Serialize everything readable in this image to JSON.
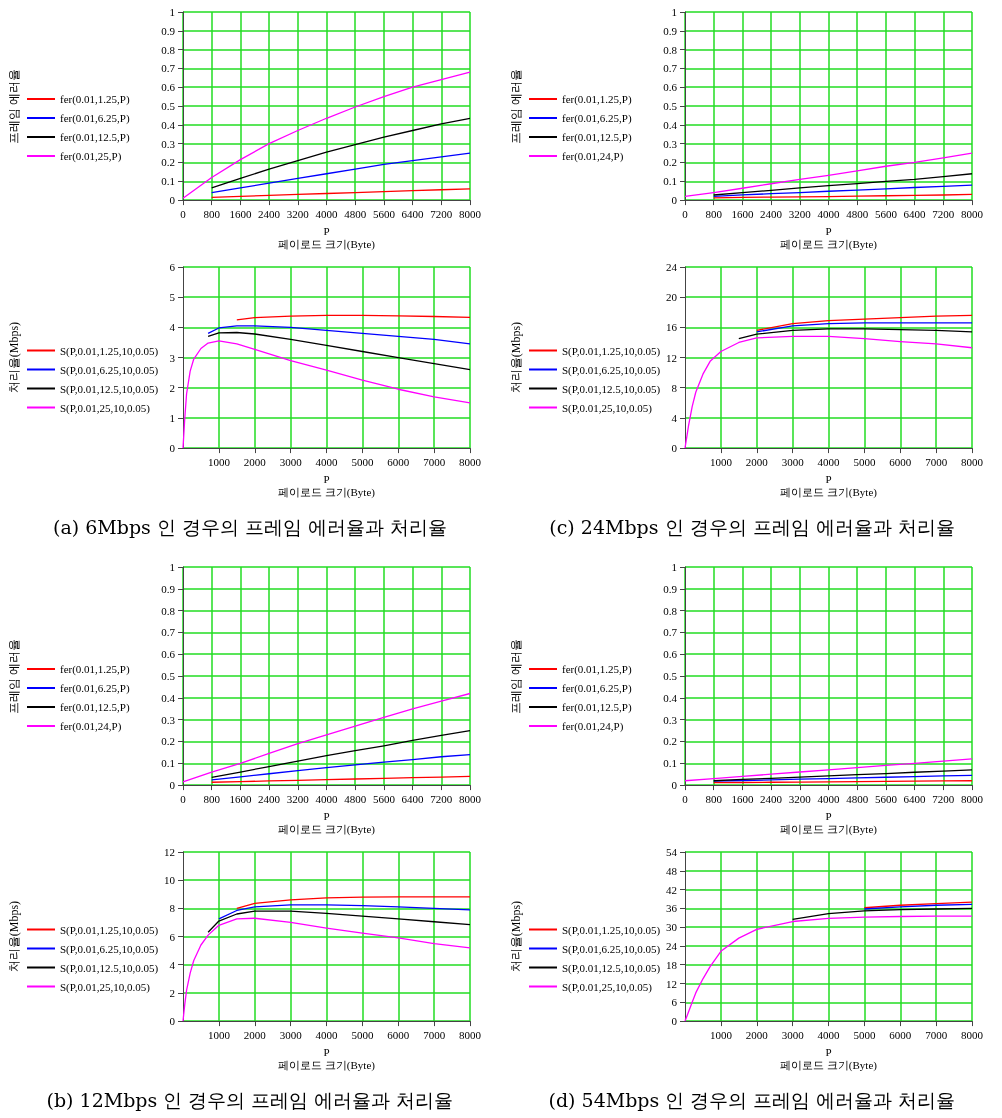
{
  "chart_data": [
    {
      "type": "line",
      "xlabel": "P\n페이로드 크기(Byte)",
      "ylabel": "프레임 에러율",
      "x": [
        0,
        800,
        1600,
        2400,
        3200,
        4000,
        4800,
        5600,
        6400,
        7200,
        8000
      ],
      "xlim": [
        0,
        8000
      ],
      "xticks": [
        0,
        800,
        1600,
        2400,
        3200,
        4000,
        4800,
        5600,
        6400,
        7200,
        8000
      ],
      "ylim": [
        0,
        1
      ],
      "yticks": [
        0,
        0.1,
        0.2,
        0.3,
        0.4,
        0.5,
        0.6,
        0.7,
        0.8,
        0.9,
        1
      ],
      "grid": true,
      "legend": "left",
      "marker": "none",
      "series": [
        {
          "name": "fer(0.01,1.25,P)",
          "color": "#ff0000",
          "values": [
            null,
            0.015,
            0.02,
            0.025,
            0.03,
            0.035,
            0.04,
            0.045,
            0.05,
            0.055,
            0.06
          ]
        },
        {
          "name": "fer(0.01,6.25,P)",
          "color": "#0000ff",
          "values": [
            null,
            0.04,
            0.065,
            0.09,
            0.115,
            0.14,
            0.165,
            0.19,
            0.21,
            0.23,
            0.25
          ]
        },
        {
          "name": "fer(0.01,12.5,P)",
          "color": "#000000",
          "values": [
            null,
            0.065,
            0.115,
            0.165,
            0.21,
            0.255,
            0.295,
            0.335,
            0.37,
            0.405,
            0.435
          ]
        },
        {
          "name": "fer(0.01,25,P)",
          "color": "#ff00ff",
          "values": [
            0.01,
            0.12,
            0.215,
            0.3,
            0.37,
            0.435,
            0.495,
            0.55,
            0.6,
            0.64,
            0.68
          ]
        }
      ]
    },
    {
      "type": "line",
      "xlabel": "P\n페이로드 크기(Byte)",
      "ylabel": "프레임 에러율",
      "x": [
        0,
        800,
        1600,
        2400,
        3200,
        4000,
        4800,
        5600,
        6400,
        7200,
        8000
      ],
      "xlim": [
        0,
        8000
      ],
      "xticks": [
        0,
        800,
        1600,
        2400,
        3200,
        4000,
        4800,
        5600,
        6400,
        7200,
        8000
      ],
      "ylim": [
        0,
        1
      ],
      "yticks": [
        0,
        0.1,
        0.2,
        0.3,
        0.4,
        0.5,
        0.6,
        0.7,
        0.8,
        0.9,
        1
      ],
      "grid": true,
      "legend": "left",
      "marker": "none",
      "series": [
        {
          "name": "fer(0.01,1.25,P)",
          "color": "#ff0000",
          "values": [
            null,
            0.012,
            0.014,
            0.016,
            0.017,
            0.019,
            0.021,
            0.023,
            0.025,
            0.027,
            0.03
          ]
        },
        {
          "name": "fer(0.01,6.25,P)",
          "color": "#0000ff",
          "values": [
            null,
            0.02,
            0.028,
            0.034,
            0.04,
            0.047,
            0.053,
            0.06,
            0.067,
            0.073,
            0.08
          ]
        },
        {
          "name": "fer(0.01,12.5,P)",
          "color": "#000000",
          "values": [
            null,
            0.027,
            0.04,
            0.052,
            0.065,
            0.077,
            0.088,
            0.1,
            0.11,
            0.125,
            0.14
          ]
        },
        {
          "name": "fer(0.01,24,P)",
          "color": "#ff00ff",
          "values": [
            0.02,
            0.04,
            0.063,
            0.087,
            0.11,
            0.132,
            0.155,
            0.18,
            0.2,
            0.225,
            0.25
          ]
        }
      ]
    },
    {
      "type": "line",
      "xlabel": "P\n페이로드 크기(Byte)",
      "ylabel": "처리율(Mbps)",
      "x": [
        0,
        50,
        100,
        200,
        300,
        500,
        700,
        1000,
        1500,
        2000,
        3000,
        4000,
        5000,
        6000,
        7000,
        8000
      ],
      "xlim": [
        0,
        8000
      ],
      "xticks": [
        1000,
        2000,
        3000,
        4000,
        5000,
        6000,
        7000,
        8000
      ],
      "ylim": [
        0,
        6
      ],
      "yticks": [
        0,
        1,
        2,
        3,
        4,
        5,
        6
      ],
      "grid": true,
      "legend": "left",
      "marker": "none",
      "annotations": [
        "(a) 6Mbps 인 경우의 프레임 에러율과 처리율"
      ],
      "series": [
        {
          "name": "S(P,0.01,1.25,10,0.05)",
          "color": "#ff0000",
          "values": [
            null,
            null,
            null,
            null,
            null,
            null,
            null,
            null,
            4.25,
            4.32,
            4.37,
            4.4,
            4.4,
            4.38,
            4.36,
            4.33
          ]
        },
        {
          "name": "S(P,0.01,6.25,10,0.05)",
          "color": "#0000ff",
          "values": [
            null,
            null,
            null,
            null,
            null,
            null,
            3.8,
            3.98,
            4.05,
            4.05,
            4,
            3.9,
            3.8,
            3.7,
            3.6,
            3.45
          ]
        },
        {
          "name": "S(P,0.01,12.5,10,0.05)",
          "color": "#000000",
          "values": [
            null,
            null,
            null,
            null,
            null,
            null,
            3.7,
            3.82,
            3.83,
            3.78,
            3.6,
            3.4,
            3.2,
            3,
            2.8,
            2.6
          ]
        },
        {
          "name": "S(P,0.01,25,10,0.05)",
          "color": "#ff00ff",
          "values": [
            0,
            1,
            1.8,
            2.55,
            2.95,
            3.3,
            3.48,
            3.55,
            3.45,
            3.27,
            2.9,
            2.58,
            2.25,
            1.95,
            1.7,
            1.5
          ]
        }
      ]
    },
    {
      "type": "line",
      "xlabel": "P\n페이로드 크기(Byte)",
      "ylabel": "처리율(Mbps)",
      "x": [
        0,
        50,
        100,
        200,
        300,
        500,
        700,
        1000,
        1500,
        2000,
        3000,
        4000,
        5000,
        6000,
        7000,
        8000
      ],
      "xlim": [
        0,
        8000
      ],
      "xticks": [
        1000,
        2000,
        3000,
        4000,
        5000,
        6000,
        7000,
        8000
      ],
      "ylim": [
        0,
        24
      ],
      "yticks": [
        0,
        4,
        8,
        12,
        16,
        20,
        24
      ],
      "grid": true,
      "legend": "left",
      "marker": "none",
      "annotations": [
        "(c) 24Mbps 인 경우의 프레임 에러율과 처리율"
      ],
      "series": [
        {
          "name": "S(P,0.01,1.25,10,0.05)",
          "color": "#ff0000",
          "values": [
            null,
            null,
            null,
            null,
            null,
            null,
            null,
            null,
            null,
            15.6,
            16.5,
            16.9,
            17.1,
            17.3,
            17.5,
            17.6
          ]
        },
        {
          "name": "S(P,0.01,6.25,10,0.05)",
          "color": "#0000ff",
          "values": [
            null,
            null,
            null,
            null,
            null,
            null,
            null,
            null,
            null,
            15.4,
            16.2,
            16.5,
            16.6,
            16.6,
            16.6,
            16.6
          ]
        },
        {
          "name": "S(P,0.01,12.5,10,0.05)",
          "color": "#000000",
          "values": [
            null,
            null,
            null,
            null,
            null,
            null,
            null,
            null,
            14.5,
            15.1,
            15.6,
            15.8,
            15.8,
            15.7,
            15.6,
            15.4
          ]
        },
        {
          "name": "S(P,0.01,25,10,0.05)",
          "color": "#ff00ff",
          "values": [
            0,
            1.5,
            3,
            5.5,
            7.4,
            9.8,
            11.5,
            12.8,
            14,
            14.6,
            14.8,
            14.8,
            14.5,
            14.1,
            13.8,
            13.3
          ]
        }
      ]
    },
    {
      "type": "line",
      "xlabel": "P\n페이로드 크기(Byte)",
      "ylabel": "프레임 에러율",
      "x": [
        0,
        800,
        1600,
        2400,
        3200,
        4000,
        4800,
        5600,
        6400,
        7200,
        8000
      ],
      "xlim": [
        0,
        8000
      ],
      "xticks": [
        0,
        800,
        1600,
        2400,
        3200,
        4000,
        4800,
        5600,
        6400,
        7200,
        8000
      ],
      "ylim": [
        0,
        1
      ],
      "yticks": [
        0,
        0.1,
        0.2,
        0.3,
        0.4,
        0.5,
        0.6,
        0.7,
        0.8,
        0.9,
        1
      ],
      "grid": true,
      "legend": "left",
      "marker": "none",
      "series": [
        {
          "name": "fer(0.01,1.25,P)",
          "color": "#ff0000",
          "values": [
            null,
            0.013,
            0.016,
            0.019,
            0.022,
            0.025,
            0.028,
            0.031,
            0.034,
            0.037,
            0.04
          ]
        },
        {
          "name": "fer(0.01,6.25,P)",
          "color": "#0000ff",
          "values": [
            null,
            0.024,
            0.038,
            0.052,
            0.066,
            0.08,
            0.093,
            0.105,
            0.117,
            0.13,
            0.14
          ]
        },
        {
          "name": "fer(0.01,12.5,P)",
          "color": "#000000",
          "values": [
            null,
            0.035,
            0.06,
            0.085,
            0.11,
            0.135,
            0.158,
            0.18,
            0.205,
            0.228,
            0.25
          ]
        },
        {
          "name": "fer(0.01,24,P)",
          "color": "#ff00ff",
          "values": [
            0.015,
            0.06,
            0.1,
            0.145,
            0.19,
            0.23,
            0.27,
            0.31,
            0.35,
            0.385,
            0.42
          ]
        }
      ]
    },
    {
      "type": "line",
      "xlabel": "P\n페이로드 크기(Byte)",
      "ylabel": "프레임 에러율",
      "x": [
        0,
        800,
        1600,
        2400,
        3200,
        4000,
        4800,
        5600,
        6400,
        7200,
        8000
      ],
      "xlim": [
        0,
        8000
      ],
      "xticks": [
        0,
        800,
        1600,
        2400,
        3200,
        4000,
        4800,
        5600,
        6400,
        7200,
        8000
      ],
      "ylim": [
        0,
        1
      ],
      "yticks": [
        0,
        0.1,
        0.2,
        0.3,
        0.4,
        0.5,
        0.6,
        0.7,
        0.8,
        0.9,
        1
      ],
      "grid": true,
      "legend": "left",
      "marker": "none",
      "series": [
        {
          "name": "fer(0.01,1.25,P)",
          "color": "#ff0000",
          "values": [
            null,
            0.011,
            0.012,
            0.013,
            0.014,
            0.015,
            0.016,
            0.017,
            0.018,
            0.019,
            0.02
          ]
        },
        {
          "name": "fer(0.01,6.25,P)",
          "color": "#0000ff",
          "values": [
            null,
            0.018,
            0.021,
            0.024,
            0.027,
            0.03,
            0.033,
            0.036,
            0.039,
            0.042,
            0.045
          ]
        },
        {
          "name": "fer(0.01,12.5,P)",
          "color": "#000000",
          "values": [
            null,
            0.02,
            0.026,
            0.031,
            0.037,
            0.042,
            0.048,
            0.053,
            0.059,
            0.064,
            0.07
          ]
        },
        {
          "name": "fer(0.01,24,P)",
          "color": "#ff00ff",
          "values": [
            0.02,
            0.03,
            0.04,
            0.05,
            0.06,
            0.07,
            0.08,
            0.09,
            0.1,
            0.11,
            0.12
          ]
        }
      ]
    },
    {
      "type": "line",
      "xlabel": "P\n페이로드 크기(Byte)",
      "ylabel": "처리율(Mbps)",
      "x": [
        0,
        50,
        100,
        200,
        300,
        500,
        700,
        1000,
        1500,
        2000,
        3000,
        4000,
        5000,
        6000,
        7000,
        8000
      ],
      "xlim": [
        0,
        8000
      ],
      "xticks": [
        1000,
        2000,
        3000,
        4000,
        5000,
        6000,
        7000,
        8000
      ],
      "ylim": [
        0,
        12
      ],
      "yticks": [
        0,
        2,
        4,
        6,
        8,
        10,
        12
      ],
      "grid": true,
      "legend": "left",
      "marker": "none",
      "annotations": [
        "(b) 12Mbps 인 경우의 프레임 에러율과 처리율"
      ],
      "series": [
        {
          "name": "S(P,0.01,1.25,10,0.05)",
          "color": "#ff0000",
          "values": [
            null,
            null,
            null,
            null,
            null,
            null,
            null,
            null,
            8,
            8.35,
            8.6,
            8.75,
            8.8,
            8.82,
            8.82,
            8.82
          ]
        },
        {
          "name": "S(P,0.01,6.25,10,0.05)",
          "color": "#0000ff",
          "values": [
            null,
            null,
            null,
            null,
            null,
            null,
            null,
            7.25,
            7.85,
            8.1,
            8.25,
            8.25,
            8.2,
            8.1,
            8,
            7.9
          ]
        },
        {
          "name": "S(P,0.01,12.5,10,0.05)",
          "color": "#000000",
          "values": [
            null,
            null,
            null,
            null,
            null,
            null,
            6.3,
            7.1,
            7.6,
            7.8,
            7.8,
            7.65,
            7.45,
            7.25,
            7.05,
            6.85
          ]
        },
        {
          "name": "S(P,0.01,25,10,0.05)",
          "color": "#ff00ff",
          "values": [
            0,
            1.2,
            2.2,
            3.4,
            4.3,
            5.4,
            6.1,
            6.8,
            7.25,
            7.3,
            7,
            6.6,
            6.25,
            5.9,
            5.5,
            5.2
          ]
        }
      ]
    },
    {
      "type": "line",
      "xlabel": "P\n페이로드 크기(Byte)",
      "ylabel": "처리율(Mbps)",
      "x": [
        0,
        50,
        100,
        200,
        300,
        500,
        700,
        1000,
        1500,
        2000,
        3000,
        4000,
        5000,
        6000,
        7000,
        8000
      ],
      "xlim": [
        0,
        8000
      ],
      "xticks": [
        1000,
        2000,
        3000,
        4000,
        5000,
        6000,
        7000,
        8000
      ],
      "ylim": [
        0,
        54
      ],
      "yticks": [
        0,
        6,
        12,
        18,
        24,
        30,
        36,
        42,
        48,
        54
      ],
      "grid": true,
      "legend": "left",
      "marker": "none",
      "annotations": [
        "(d) 54Mbps 인 경우의 프레임 에러율과 처리율"
      ],
      "series": [
        {
          "name": "S(P,0.01,1.25,10,0.05)",
          "color": "#ff0000",
          "values": [
            null,
            null,
            null,
            null,
            null,
            null,
            null,
            null,
            null,
            null,
            null,
            null,
            36.2,
            37,
            37.5,
            38
          ]
        },
        {
          "name": "S(P,0.01,6.25,10,0.05)",
          "color": "#0000ff",
          "values": [
            null,
            null,
            null,
            null,
            null,
            null,
            null,
            null,
            null,
            null,
            null,
            null,
            35.8,
            36.5,
            37,
            37.3
          ]
        },
        {
          "name": "S(P,0.01,12.5,10,0.05)",
          "color": "#000000",
          "values": [
            null,
            null,
            null,
            null,
            null,
            null,
            null,
            null,
            null,
            null,
            32.5,
            34.3,
            35.2,
            35.6,
            35.8,
            36
          ]
        },
        {
          "name": "S(P,0.01,25,10,0.05)",
          "color": "#ff00ff",
          "values": [
            0,
            1.5,
            3,
            6,
            9,
            13.5,
            17.4,
            22.3,
            26.5,
            29.3,
            31.8,
            32.8,
            33.2,
            33.4,
            33.5,
            33.5
          ]
        }
      ]
    }
  ]
}
